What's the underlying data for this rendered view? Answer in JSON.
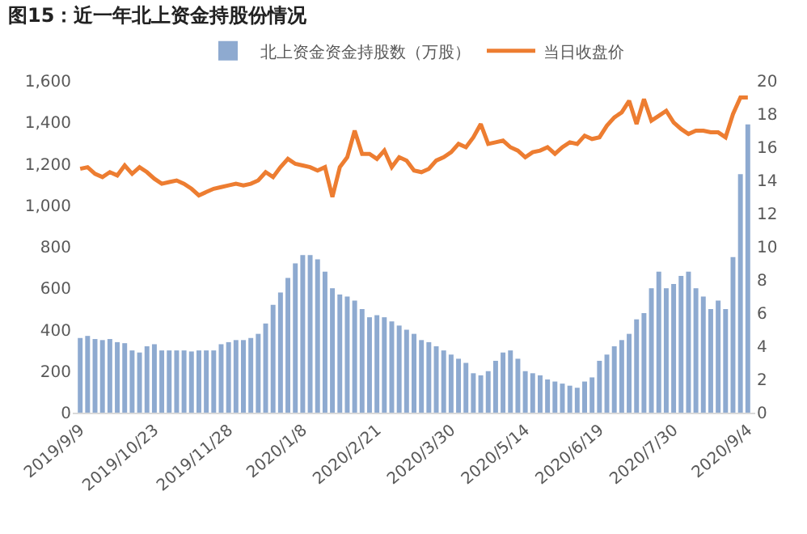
{
  "chart_data": {
    "type": "bar",
    "title": "图15：近一年北上资金持股份情况",
    "categories": [
      "2019/9/9",
      null,
      null,
      null,
      null,
      null,
      null,
      null,
      null,
      null,
      "2019/10/23",
      null,
      null,
      null,
      null,
      null,
      null,
      null,
      null,
      null,
      "2019/11/28",
      null,
      null,
      null,
      null,
      null,
      null,
      null,
      null,
      null,
      "2020/1/8",
      null,
      null,
      null,
      null,
      null,
      null,
      null,
      null,
      null,
      "2020/2/21",
      null,
      null,
      null,
      null,
      null,
      null,
      null,
      null,
      null,
      "2020/3/30",
      null,
      null,
      null,
      null,
      null,
      null,
      null,
      null,
      null,
      "2020/5/14",
      null,
      null,
      null,
      null,
      null,
      null,
      null,
      null,
      null,
      "2020/6/19",
      null,
      null,
      null,
      null,
      null,
      null,
      null,
      null,
      null,
      "2020/7/30",
      null,
      null,
      null,
      null,
      null,
      null,
      null,
      null,
      null,
      "2020/9/4"
    ],
    "series": [
      {
        "name": "北上资金资金持股数（万股）",
        "color": "#8eaad0",
        "values": [
          360,
          370,
          355,
          350,
          355,
          340,
          335,
          300,
          290,
          320,
          330,
          300,
          300,
          300,
          300,
          295,
          300,
          300,
          300,
          330,
          340,
          350,
          350,
          360,
          380,
          430,
          520,
          580,
          650,
          720,
          760,
          760,
          740,
          680,
          600,
          570,
          560,
          540,
          500,
          460,
          470,
          460,
          440,
          420,
          400,
          380,
          350,
          340,
          320,
          300,
          280,
          260,
          240,
          190,
          180,
          200,
          250,
          290,
          300,
          260,
          200,
          190,
          180,
          160,
          150,
          140,
          130,
          120,
          150,
          170,
          250,
          280,
          320,
          350,
          380,
          450,
          480,
          600,
          680,
          600,
          620,
          660,
          680,
          600,
          560,
          500,
          540,
          500,
          750,
          1150,
          1390
        ]
      },
      {
        "name": "当日收盘价",
        "type": "line",
        "axis": "y2",
        "color": "#ed7d31",
        "values": [
          14.7,
          14.8,
          14.4,
          14.2,
          14.5,
          14.3,
          14.9,
          14.4,
          14.8,
          14.5,
          14.1,
          13.8,
          13.9,
          14.0,
          13.8,
          13.5,
          13.1,
          13.3,
          13.5,
          13.6,
          13.7,
          13.8,
          13.7,
          13.8,
          14.0,
          14.5,
          14.2,
          14.8,
          15.3,
          15.0,
          14.9,
          14.8,
          14.6,
          14.8,
          13.0,
          14.8,
          15.4,
          17.0,
          15.6,
          15.6,
          15.3,
          15.8,
          14.8,
          15.4,
          15.2,
          14.6,
          14.5,
          14.7,
          15.2,
          15.4,
          15.7,
          16.2,
          16.0,
          16.6,
          17.4,
          16.2,
          16.3,
          16.4,
          16.0,
          15.8,
          15.4,
          15.7,
          15.8,
          16.0,
          15.6,
          16.0,
          16.3,
          16.2,
          16.7,
          16.5,
          16.6,
          17.3,
          17.8,
          18.1,
          18.8,
          17.4,
          18.9,
          17.6,
          17.9,
          18.2,
          17.5,
          17.1,
          16.8,
          17.0,
          17.0,
          16.9,
          16.9,
          16.6,
          18.0,
          19.0,
          19.0
        ]
      }
    ],
    "ylim": [
      0,
      1600
    ],
    "yticks": [
      0,
      200,
      400,
      600,
      800,
      {
        "value": 1000,
        "label": "1,000"
      },
      {
        "value": 1200,
        "label": "1,200"
      },
      {
        "value": 1400,
        "label": "1,400"
      },
      {
        "value": 1600,
        "label": "1,600"
      }
    ],
    "y2lim": [
      0,
      20
    ],
    "y2ticks": [
      0,
      2,
      4,
      6,
      8,
      10,
      12,
      14,
      16,
      18,
      20
    ],
    "legend": "top"
  }
}
